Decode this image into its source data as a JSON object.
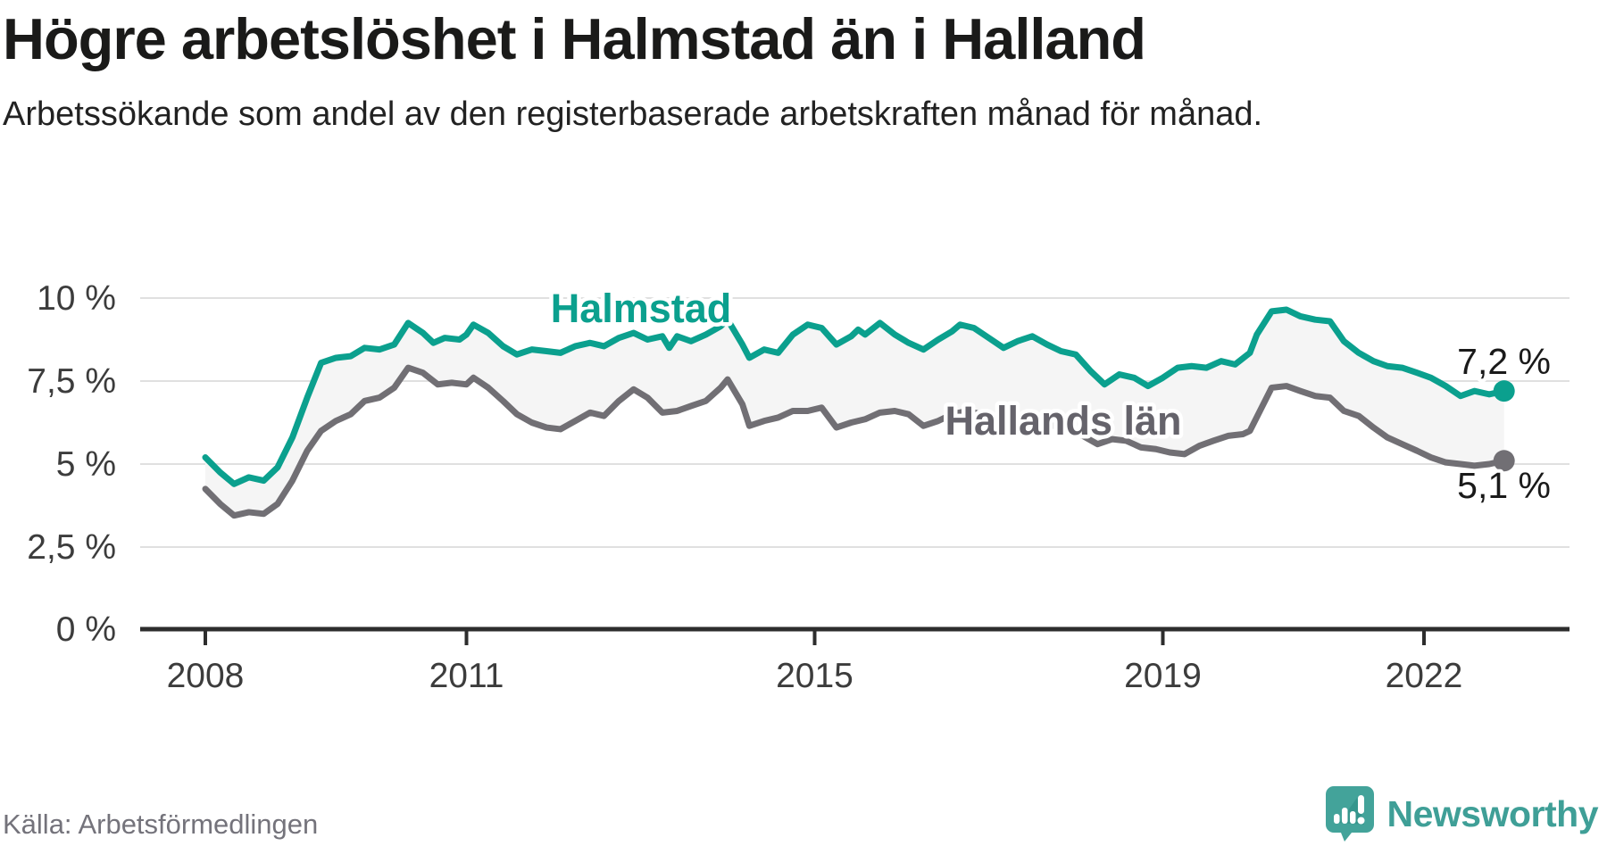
{
  "header": {
    "title": "Högre arbetslöshet i Halmstad än i Halland",
    "subtitle": "Arbetssökande som andel av den registerbaserade arbetskraften månad för månad."
  },
  "chart_data": {
    "type": "line",
    "title": "Högre arbetslöshet i Halmstad än i Halland",
    "xlabel": "",
    "ylabel": "",
    "x_axis": {
      "tick_labels": [
        "2008",
        "2011",
        "2015",
        "2019",
        "2022"
      ],
      "tick_values": [
        2008,
        2011,
        2015,
        2019,
        2022
      ],
      "range": [
        2008,
        2023.3
      ]
    },
    "y_axis": {
      "tick_labels": [
        "0 %",
        "2,5 %",
        "5 %",
        "7,5 %",
        "10 %"
      ],
      "tick_values": [
        0,
        2.5,
        5,
        7.5,
        10
      ],
      "range": [
        0,
        10.5
      ]
    },
    "grid": true,
    "legend_position": "inline-labels",
    "band_between_series": true,
    "series": [
      {
        "name": "Halmstad",
        "color": "#0ba08e",
        "end_label": "7,2 %",
        "end_value": 7.2,
        "points": [
          [
            2008.0,
            5.2
          ],
          [
            2008.17,
            4.75
          ],
          [
            2008.33,
            4.4
          ],
          [
            2008.5,
            4.6
          ],
          [
            2008.67,
            4.5
          ],
          [
            2008.83,
            4.9
          ],
          [
            2009.0,
            5.8
          ],
          [
            2009.17,
            7.0
          ],
          [
            2009.33,
            8.05
          ],
          [
            2009.5,
            8.2
          ],
          [
            2009.67,
            8.25
          ],
          [
            2009.83,
            8.5
          ],
          [
            2010.0,
            8.45
          ],
          [
            2010.17,
            8.6
          ],
          [
            2010.33,
            9.25
          ],
          [
            2010.5,
            8.95
          ],
          [
            2010.62,
            8.65
          ],
          [
            2010.75,
            8.8
          ],
          [
            2010.92,
            8.75
          ],
          [
            2011.0,
            8.9
          ],
          [
            2011.08,
            9.2
          ],
          [
            2011.25,
            8.95
          ],
          [
            2011.42,
            8.55
          ],
          [
            2011.58,
            8.3
          ],
          [
            2011.75,
            8.45
          ],
          [
            2011.92,
            8.4
          ],
          [
            2012.08,
            8.35
          ],
          [
            2012.25,
            8.55
          ],
          [
            2012.42,
            8.65
          ],
          [
            2012.58,
            8.55
          ],
          [
            2012.75,
            8.8
          ],
          [
            2012.92,
            8.95
          ],
          [
            2013.08,
            8.75
          ],
          [
            2013.25,
            8.85
          ],
          [
            2013.33,
            8.5
          ],
          [
            2013.42,
            8.85
          ],
          [
            2013.58,
            8.7
          ],
          [
            2013.75,
            8.9
          ],
          [
            2013.92,
            9.15
          ],
          [
            2014.0,
            9.35
          ],
          [
            2014.17,
            8.6
          ],
          [
            2014.25,
            8.2
          ],
          [
            2014.42,
            8.45
          ],
          [
            2014.58,
            8.35
          ],
          [
            2014.75,
            8.9
          ],
          [
            2014.92,
            9.2
          ],
          [
            2015.08,
            9.1
          ],
          [
            2015.25,
            8.6
          ],
          [
            2015.42,
            8.85
          ],
          [
            2015.5,
            9.05
          ],
          [
            2015.58,
            8.9
          ],
          [
            2015.75,
            9.25
          ],
          [
            2015.92,
            8.9
          ],
          [
            2016.08,
            8.65
          ],
          [
            2016.25,
            8.45
          ],
          [
            2016.42,
            8.75
          ],
          [
            2016.58,
            9.0
          ],
          [
            2016.67,
            9.2
          ],
          [
            2016.83,
            9.1
          ],
          [
            2017.0,
            8.8
          ],
          [
            2017.17,
            8.5
          ],
          [
            2017.33,
            8.7
          ],
          [
            2017.5,
            8.85
          ],
          [
            2017.67,
            8.6
          ],
          [
            2017.83,
            8.4
          ],
          [
            2018.0,
            8.3
          ],
          [
            2018.17,
            7.8
          ],
          [
            2018.33,
            7.4
          ],
          [
            2018.5,
            7.7
          ],
          [
            2018.67,
            7.6
          ],
          [
            2018.83,
            7.35
          ],
          [
            2019.0,
            7.6
          ],
          [
            2019.17,
            7.9
          ],
          [
            2019.33,
            7.95
          ],
          [
            2019.5,
            7.9
          ],
          [
            2019.67,
            8.1
          ],
          [
            2019.83,
            8.0
          ],
          [
            2020.0,
            8.35
          ],
          [
            2020.08,
            8.9
          ],
          [
            2020.25,
            9.6
          ],
          [
            2020.42,
            9.65
          ],
          [
            2020.58,
            9.45
          ],
          [
            2020.75,
            9.35
          ],
          [
            2020.92,
            9.3
          ],
          [
            2021.08,
            8.7
          ],
          [
            2021.25,
            8.35
          ],
          [
            2021.42,
            8.1
          ],
          [
            2021.58,
            7.95
          ],
          [
            2021.75,
            7.9
          ],
          [
            2021.92,
            7.75
          ],
          [
            2022.08,
            7.6
          ],
          [
            2022.25,
            7.35
          ],
          [
            2022.42,
            7.05
          ],
          [
            2022.58,
            7.2
          ],
          [
            2022.75,
            7.1
          ],
          [
            2022.92,
            7.2
          ]
        ]
      },
      {
        "name": "Hallands län",
        "color": "#716f74",
        "end_label": "5,1 %",
        "end_value": 5.1,
        "points": [
          [
            2008.0,
            4.25
          ],
          [
            2008.17,
            3.8
          ],
          [
            2008.33,
            3.45
          ],
          [
            2008.5,
            3.55
          ],
          [
            2008.67,
            3.5
          ],
          [
            2008.83,
            3.8
          ],
          [
            2009.0,
            4.5
          ],
          [
            2009.17,
            5.4
          ],
          [
            2009.33,
            6.0
          ],
          [
            2009.5,
            6.3
          ],
          [
            2009.67,
            6.5
          ],
          [
            2009.83,
            6.9
          ],
          [
            2010.0,
            7.0
          ],
          [
            2010.17,
            7.3
          ],
          [
            2010.33,
            7.9
          ],
          [
            2010.5,
            7.75
          ],
          [
            2010.67,
            7.4
          ],
          [
            2010.83,
            7.45
          ],
          [
            2011.0,
            7.4
          ],
          [
            2011.08,
            7.6
          ],
          [
            2011.25,
            7.3
          ],
          [
            2011.42,
            6.9
          ],
          [
            2011.58,
            6.5
          ],
          [
            2011.75,
            6.25
          ],
          [
            2011.92,
            6.1
          ],
          [
            2012.08,
            6.05
          ],
          [
            2012.25,
            6.3
          ],
          [
            2012.42,
            6.55
          ],
          [
            2012.58,
            6.45
          ],
          [
            2012.75,
            6.9
          ],
          [
            2012.92,
            7.25
          ],
          [
            2013.08,
            7.0
          ],
          [
            2013.25,
            6.55
          ],
          [
            2013.42,
            6.6
          ],
          [
            2013.58,
            6.75
          ],
          [
            2013.75,
            6.9
          ],
          [
            2013.92,
            7.3
          ],
          [
            2014.0,
            7.55
          ],
          [
            2014.17,
            6.8
          ],
          [
            2014.25,
            6.15
          ],
          [
            2014.42,
            6.3
          ],
          [
            2014.58,
            6.4
          ],
          [
            2014.75,
            6.6
          ],
          [
            2014.92,
            6.6
          ],
          [
            2015.08,
            6.7
          ],
          [
            2015.25,
            6.1
          ],
          [
            2015.42,
            6.25
          ],
          [
            2015.58,
            6.35
          ],
          [
            2015.75,
            6.55
          ],
          [
            2015.92,
            6.6
          ],
          [
            2016.08,
            6.5
          ],
          [
            2016.25,
            6.15
          ],
          [
            2016.42,
            6.3
          ],
          [
            2016.58,
            6.5
          ],
          [
            2016.75,
            6.6
          ],
          [
            2016.92,
            6.5
          ],
          [
            2017.08,
            6.3
          ],
          [
            2017.25,
            6.15
          ],
          [
            2017.42,
            6.35
          ],
          [
            2017.58,
            6.3
          ],
          [
            2017.75,
            6.15
          ],
          [
            2017.92,
            6.0
          ],
          [
            2018.08,
            5.85
          ],
          [
            2018.25,
            5.6
          ],
          [
            2018.42,
            5.75
          ],
          [
            2018.58,
            5.7
          ],
          [
            2018.75,
            5.5
          ],
          [
            2018.92,
            5.45
          ],
          [
            2019.08,
            5.35
          ],
          [
            2019.25,
            5.3
          ],
          [
            2019.42,
            5.55
          ],
          [
            2019.58,
            5.7
          ],
          [
            2019.75,
            5.85
          ],
          [
            2019.92,
            5.9
          ],
          [
            2020.0,
            6.0
          ],
          [
            2020.25,
            7.3
          ],
          [
            2020.42,
            7.35
          ],
          [
            2020.58,
            7.2
          ],
          [
            2020.75,
            7.05
          ],
          [
            2020.92,
            7.0
          ],
          [
            2021.08,
            6.6
          ],
          [
            2021.25,
            6.45
          ],
          [
            2021.42,
            6.1
          ],
          [
            2021.58,
            5.8
          ],
          [
            2021.75,
            5.6
          ],
          [
            2021.92,
            5.4
          ],
          [
            2022.08,
            5.2
          ],
          [
            2022.25,
            5.05
          ],
          [
            2022.42,
            5.0
          ],
          [
            2022.58,
            4.95
          ],
          [
            2022.75,
            5.0
          ],
          [
            2022.92,
            5.1
          ]
        ]
      }
    ]
  },
  "footer": {
    "source": "Källa: Arbetsförmedlingen",
    "brand": "Newsworthy",
    "brand_icon": "newsworthy-speech-bubble-bar-chart-icon"
  },
  "colors": {
    "halmstad_line": "#0ba08e",
    "halland_line": "#716f74",
    "band_fill": "#f5f5f5",
    "gridline": "#e0e0e0",
    "axis": "#2d2d2d",
    "tick_text": "#3c3c3c",
    "value_label_text": "#1a1a1a",
    "series_label_halland": "#65636b",
    "brand_teal": "#3f9f97"
  }
}
